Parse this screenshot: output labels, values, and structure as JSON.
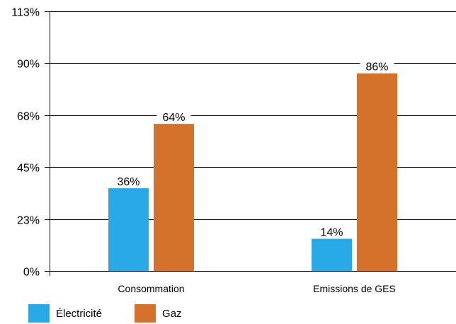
{
  "colors": {
    "electricite": "#29a9e6",
    "gaz": "#d4712a"
  },
  "chart_data": {
    "type": "bar",
    "categories": [
      "Consommation",
      "Emissions de GES"
    ],
    "series": [
      {
        "name": "Électricité",
        "values": [
          36,
          14
        ],
        "labels": [
          "36%",
          "14%"
        ],
        "color": "#29a9e6"
      },
      {
        "name": "Gaz",
        "values": [
          64,
          86
        ],
        "labels": [
          "64%",
          "86%"
        ],
        "color": "#d4712a"
      }
    ],
    "ylim": [
      0,
      113
    ],
    "yticks": [
      0,
      22.6,
      45.2,
      67.8,
      90.4,
      113
    ],
    "ytick_labels": [
      "0%",
      "23%",
      "45%",
      "68%",
      "90%",
      "113%"
    ],
    "grid": true,
    "legend": "bottom-left"
  }
}
